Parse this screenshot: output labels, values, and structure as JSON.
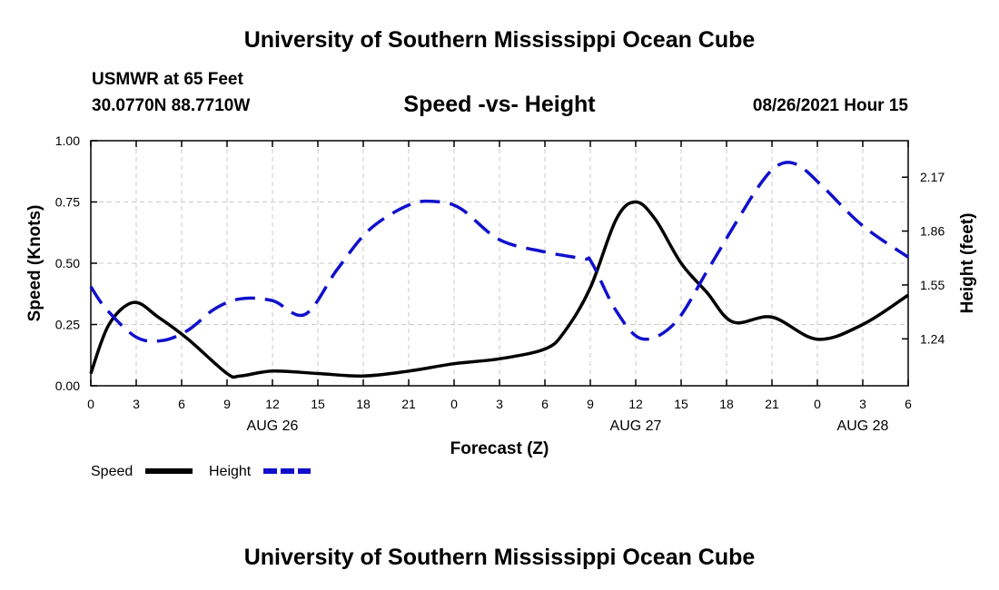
{
  "header": {
    "title": "University of Southern Mississippi Ocean Cube",
    "station": "USMWR at 65 Feet",
    "coordinates": "30.0770N  88.7710W",
    "datetime": "08/26/2021 Hour 15"
  },
  "footer": {
    "title": "University of Southern Mississippi Ocean Cube"
  },
  "colors": {
    "speed": "#000000",
    "height": "#1010cc",
    "grid": "#c8c8c8"
  },
  "chart_data": {
    "type": "line",
    "title": "Speed -vs- Height",
    "xlabel": "Forecast (Z)",
    "ylabel": "Speed (Knots)",
    "y2label": "Height (feet)",
    "x_hours_range": [
      0,
      63
    ],
    "x_ticks": [
      {
        "hour": 0,
        "label": "0"
      },
      {
        "hour": 3.5,
        "label": "3"
      },
      {
        "hour": 7,
        "label": "6"
      },
      {
        "hour": 10.5,
        "label": "9"
      },
      {
        "hour": 14,
        "label": "12"
      },
      {
        "hour": 17.5,
        "label": "15"
      },
      {
        "hour": 21,
        "label": "18"
      },
      {
        "hour": 24.5,
        "label": "21"
      },
      {
        "hour": 28,
        "label": "0"
      },
      {
        "hour": 31.5,
        "label": "3"
      },
      {
        "hour": 35,
        "label": "6"
      },
      {
        "hour": 38.5,
        "label": "9"
      },
      {
        "hour": 42,
        "label": "12"
      },
      {
        "hour": 45.5,
        "label": "15"
      },
      {
        "hour": 49,
        "label": "18"
      },
      {
        "hour": 52.5,
        "label": "21"
      },
      {
        "hour": 56,
        "label": "0"
      },
      {
        "hour": 59.5,
        "label": "3"
      },
      {
        "hour": 63,
        "label": "6"
      }
    ],
    "date_labels": [
      {
        "hour": 14,
        "label": "AUG 26"
      },
      {
        "hour": 42,
        "label": "AUG 27"
      },
      {
        "hour": 59.5,
        "label": "AUG 28"
      }
    ],
    "ylim": [
      0,
      1
    ],
    "y_ticks": [
      "0.00",
      "0.25",
      "0.50",
      "0.75",
      "1.00"
    ],
    "y2lim": [
      0.97,
      2.38
    ],
    "y2_ticks": [
      1.24,
      1.55,
      1.86,
      2.17
    ],
    "y2_tick_labels": [
      "1.24",
      "1.55",
      "1.86",
      "2.17"
    ],
    "legend": {
      "position": "bottom-left",
      "speed_label": "Speed",
      "height_label": "Height"
    },
    "series": [
      {
        "name": "Speed",
        "axis": "left",
        "style": "solid",
        "x": [
          0,
          1.4,
          3.3,
          5.2,
          7.5,
          10.5,
          11.5,
          14,
          17.5,
          21,
          24.5,
          28,
          31.5,
          35,
          36.5,
          38.5,
          40.5,
          42,
          43.5,
          45.5,
          47.5,
          49.5,
          52.5,
          56,
          59.5,
          63
        ],
        "values": [
          0.05,
          0.25,
          0.34,
          0.28,
          0.19,
          0.05,
          0.04,
          0.06,
          0.05,
          0.04,
          0.06,
          0.09,
          0.11,
          0.15,
          0.22,
          0.4,
          0.68,
          0.75,
          0.68,
          0.5,
          0.38,
          0.26,
          0.28,
          0.19,
          0.25,
          0.37
        ]
      },
      {
        "name": "Height",
        "axis": "right",
        "style": "dashed",
        "x": [
          0,
          1.2,
          3.5,
          5.5,
          7.5,
          9.5,
          11.5,
          14,
          16.5,
          19,
          21.5,
          24.5,
          26.5,
          28.5,
          31.5,
          35,
          38,
          38.6,
          40.5,
          42.5,
          45,
          47.5,
          49.5,
          51.5,
          53,
          54.5,
          56.5,
          59.5,
          63
        ],
        "values": [
          1.54,
          1.41,
          1.25,
          1.23,
          1.29,
          1.41,
          1.47,
          1.46,
          1.38,
          1.64,
          1.87,
          2.01,
          2.03,
          1.99,
          1.81,
          1.74,
          1.7,
          1.68,
          1.4,
          1.24,
          1.33,
          1.63,
          1.88,
          2.12,
          2.24,
          2.24,
          2.11,
          1.89,
          1.71
        ]
      }
    ]
  }
}
